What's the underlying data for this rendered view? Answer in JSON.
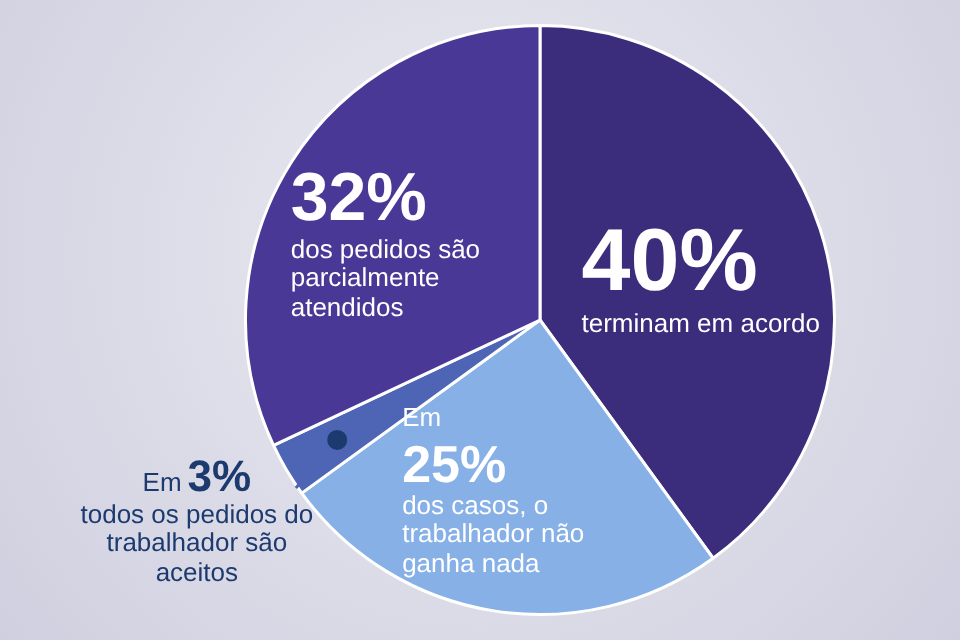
{
  "chart_data": {
    "type": "pie",
    "categories": [
      "terminam em acordo",
      "dos casos, o trabalhador não ganha nada",
      "todos os pedidos do trabalhador são aceitos",
      "dos pedidos são parcialmente atendidos"
    ],
    "values": [
      40,
      25,
      3,
      32
    ],
    "value_labels": [
      "40%",
      "25%",
      "3%",
      "32%"
    ],
    "colors": [
      "#3b2c7c",
      "#86b0e6",
      "#4e64b4",
      "#4a3896"
    ],
    "annotations": [
      {
        "text": "Em",
        "x": "dos casos, o trabalhador não ganha nada"
      },
      {
        "text": "Em",
        "x": "todos os pedidos do trabalhador são aceitos"
      }
    ],
    "legend": false
  }
}
